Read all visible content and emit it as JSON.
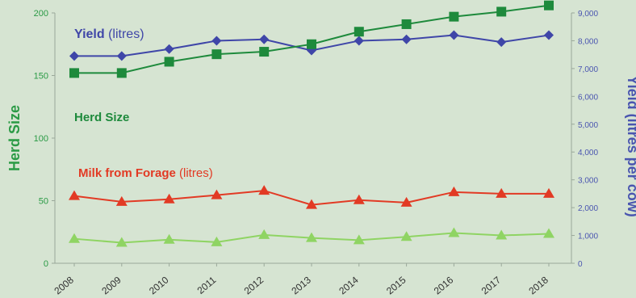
{
  "colors": {
    "background": "#d6e4d2",
    "herd": "#1e8a3c",
    "yield": "#3f46a8",
    "milk": "#e23a24",
    "lowerGreen": "#8fd463",
    "leftAxis": "#2a9a45",
    "rightAxis": "#4a55b0"
  },
  "chart_data": {
    "type": "line",
    "categories": [
      "2008",
      "2009",
      "2010",
      "2011",
      "2012",
      "2013",
      "2014",
      "2015",
      "2016",
      "2017",
      "2018"
    ],
    "axes": {
      "left": {
        "label": "Herd Size",
        "range": [
          0,
          200
        ],
        "ticks": [
          0,
          50,
          100,
          150,
          200
        ]
      },
      "right": {
        "label": "Yield (litres per cow)",
        "range": [
          0,
          9000
        ],
        "tickLabels": [
          "0",
          "1,000",
          "2,000",
          "3,000",
          "4,000",
          "5,000",
          "6,000",
          "7,000",
          "8,000",
          "9,000"
        ]
      }
    },
    "legend": "inline labels",
    "grid": false,
    "series": [
      {
        "name": "Yield (litres)",
        "axis": "right",
        "marker": "diamond",
        "color": "#3f46a8",
        "values": [
          7450,
          7450,
          7700,
          8000,
          8050,
          7650,
          8000,
          8050,
          8200,
          7950,
          8200
        ]
      },
      {
        "name": "Herd Size",
        "axis": "left",
        "marker": "square",
        "color": "#1e8a3c",
        "values": [
          152,
          152,
          161,
          167,
          169,
          175,
          185,
          191,
          197,
          201,
          206
        ]
      },
      {
        "name": "Milk from Forage (litres)",
        "axis": "right",
        "marker": "triangle",
        "color": "#e23a24",
        "values": [
          2420,
          2210,
          2300,
          2450,
          2610,
          2100,
          2270,
          2180,
          2560,
          2500,
          2500
        ]
      },
      {
        "axis": "right",
        "marker": "triangle",
        "color": "#8fd463",
        "values": [
          880,
          740,
          850,
          760,
          1020,
          910,
          830,
          950,
          1090,
          1000,
          1060
        ]
      }
    ],
    "annotations": [
      {
        "text": "Yield",
        "suffix": " (litres)"
      },
      {
        "text": "Herd Size"
      },
      {
        "text": "Milk from Forage",
        "suffix": " (litres)"
      }
    ]
  }
}
